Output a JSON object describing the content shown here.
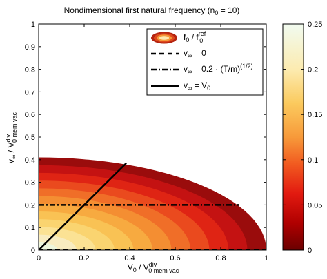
{
  "chart_data": {
    "type": "contour",
    "title_main": "Nondimensional first natural frequency (n",
    "title_sub": "0",
    "title_tail": " = 10)",
    "xlabel": {
      "a": "V",
      "a_sub": "0",
      "b": " / V",
      "b_sup": "div",
      "b_sub": "0 mem vac"
    },
    "ylabel": {
      "a": "v",
      "a_sub": "∞",
      "b": " / V",
      "b_sup": "div",
      "b_sub": "0 mem vac"
    },
    "xlim": [
      0,
      1
    ],
    "ylim": [
      0,
      1
    ],
    "xticks": [
      "0",
      "0.2",
      "0.4",
      "0.6",
      "0.8",
      "1"
    ],
    "yticks": [
      "0",
      "0.1",
      "0.2",
      "0.3",
      "0.4",
      "0.5",
      "0.6",
      "0.7",
      "0.8",
      "0.9",
      "1"
    ],
    "colorbar": {
      "clim": [
        0,
        0.25
      ],
      "ticks": [
        "0",
        "0.05",
        "0.1",
        "0.15",
        "0.2",
        "0.25"
      ]
    },
    "region": {
      "x_max": 1.0,
      "y_max": 0.41
    },
    "contour_levels": 12,
    "legend": {
      "placement": "top-right",
      "entries": [
        {
          "kind": "contour",
          "a": "f",
          "a_sub": "0",
          "b": " / f",
          "b_sup": "ref",
          "b_sub": "0"
        },
        {
          "kind": "dashed",
          "a": "v",
          "a_sub": "∞",
          "b": " = 0"
        },
        {
          "kind": "dashdot",
          "a": "v",
          "a_sub": "∞",
          "b": " = 0.2 · (T/m)",
          "b_sup": "(1/2)"
        },
        {
          "kind": "solid",
          "a": "v",
          "a_sub": "∞",
          "b": " = V",
          "b_sub2": "0"
        }
      ]
    },
    "lines": [
      {
        "name": "v∞ = 0",
        "style": "dashed",
        "x": [
          0,
          1.0
        ],
        "y": [
          0,
          0
        ]
      },
      {
        "name": "v∞ = 0.2·(T/m)^(1/2)",
        "style": "dashdot",
        "x": [
          0,
          0.88
        ],
        "y": [
          0.2,
          0.2
        ]
      },
      {
        "name": "v∞ = V0",
        "style": "solid",
        "x": [
          0,
          0.385
        ],
        "y": [
          0,
          0.385
        ]
      }
    ]
  }
}
